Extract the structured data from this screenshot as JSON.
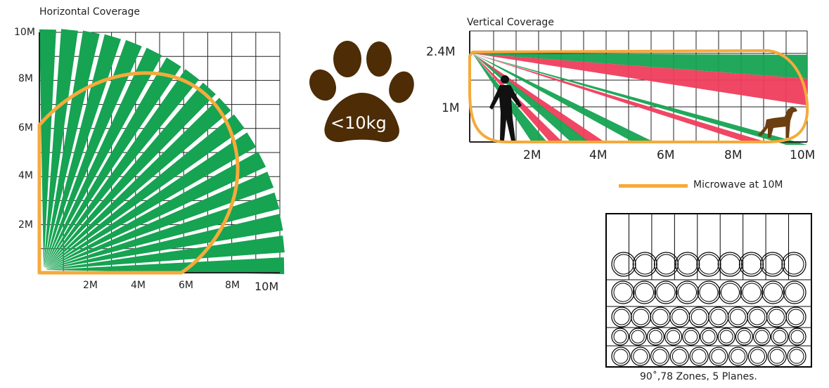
{
  "horizontal": {
    "title": "Horizontal Coverage",
    "y_ticks": [
      "10M",
      "8M",
      "6M",
      "4M",
      "2M"
    ],
    "x_ticks": [
      "2M",
      "4M",
      "6M",
      "8M",
      "10M"
    ],
    "beam_count": 18
  },
  "pet": {
    "label": "<10kg",
    "color": "#4d2c06"
  },
  "vertical": {
    "title": "Vertical Coverage",
    "y_ticks": [
      "2.4M",
      "1M"
    ],
    "x_ticks": [
      "2M",
      "4M",
      "6M",
      "8M",
      "10M"
    ]
  },
  "legend": {
    "microwave_label": "Microwave at 10M",
    "color": "#f5aa3b"
  },
  "zones": {
    "caption": "90˚,78 Zones, 5 Planes."
  },
  "colors": {
    "green": "#16a352",
    "red": "#ef3d5d",
    "orange": "#f5aa3b",
    "grid": "#222222"
  }
}
